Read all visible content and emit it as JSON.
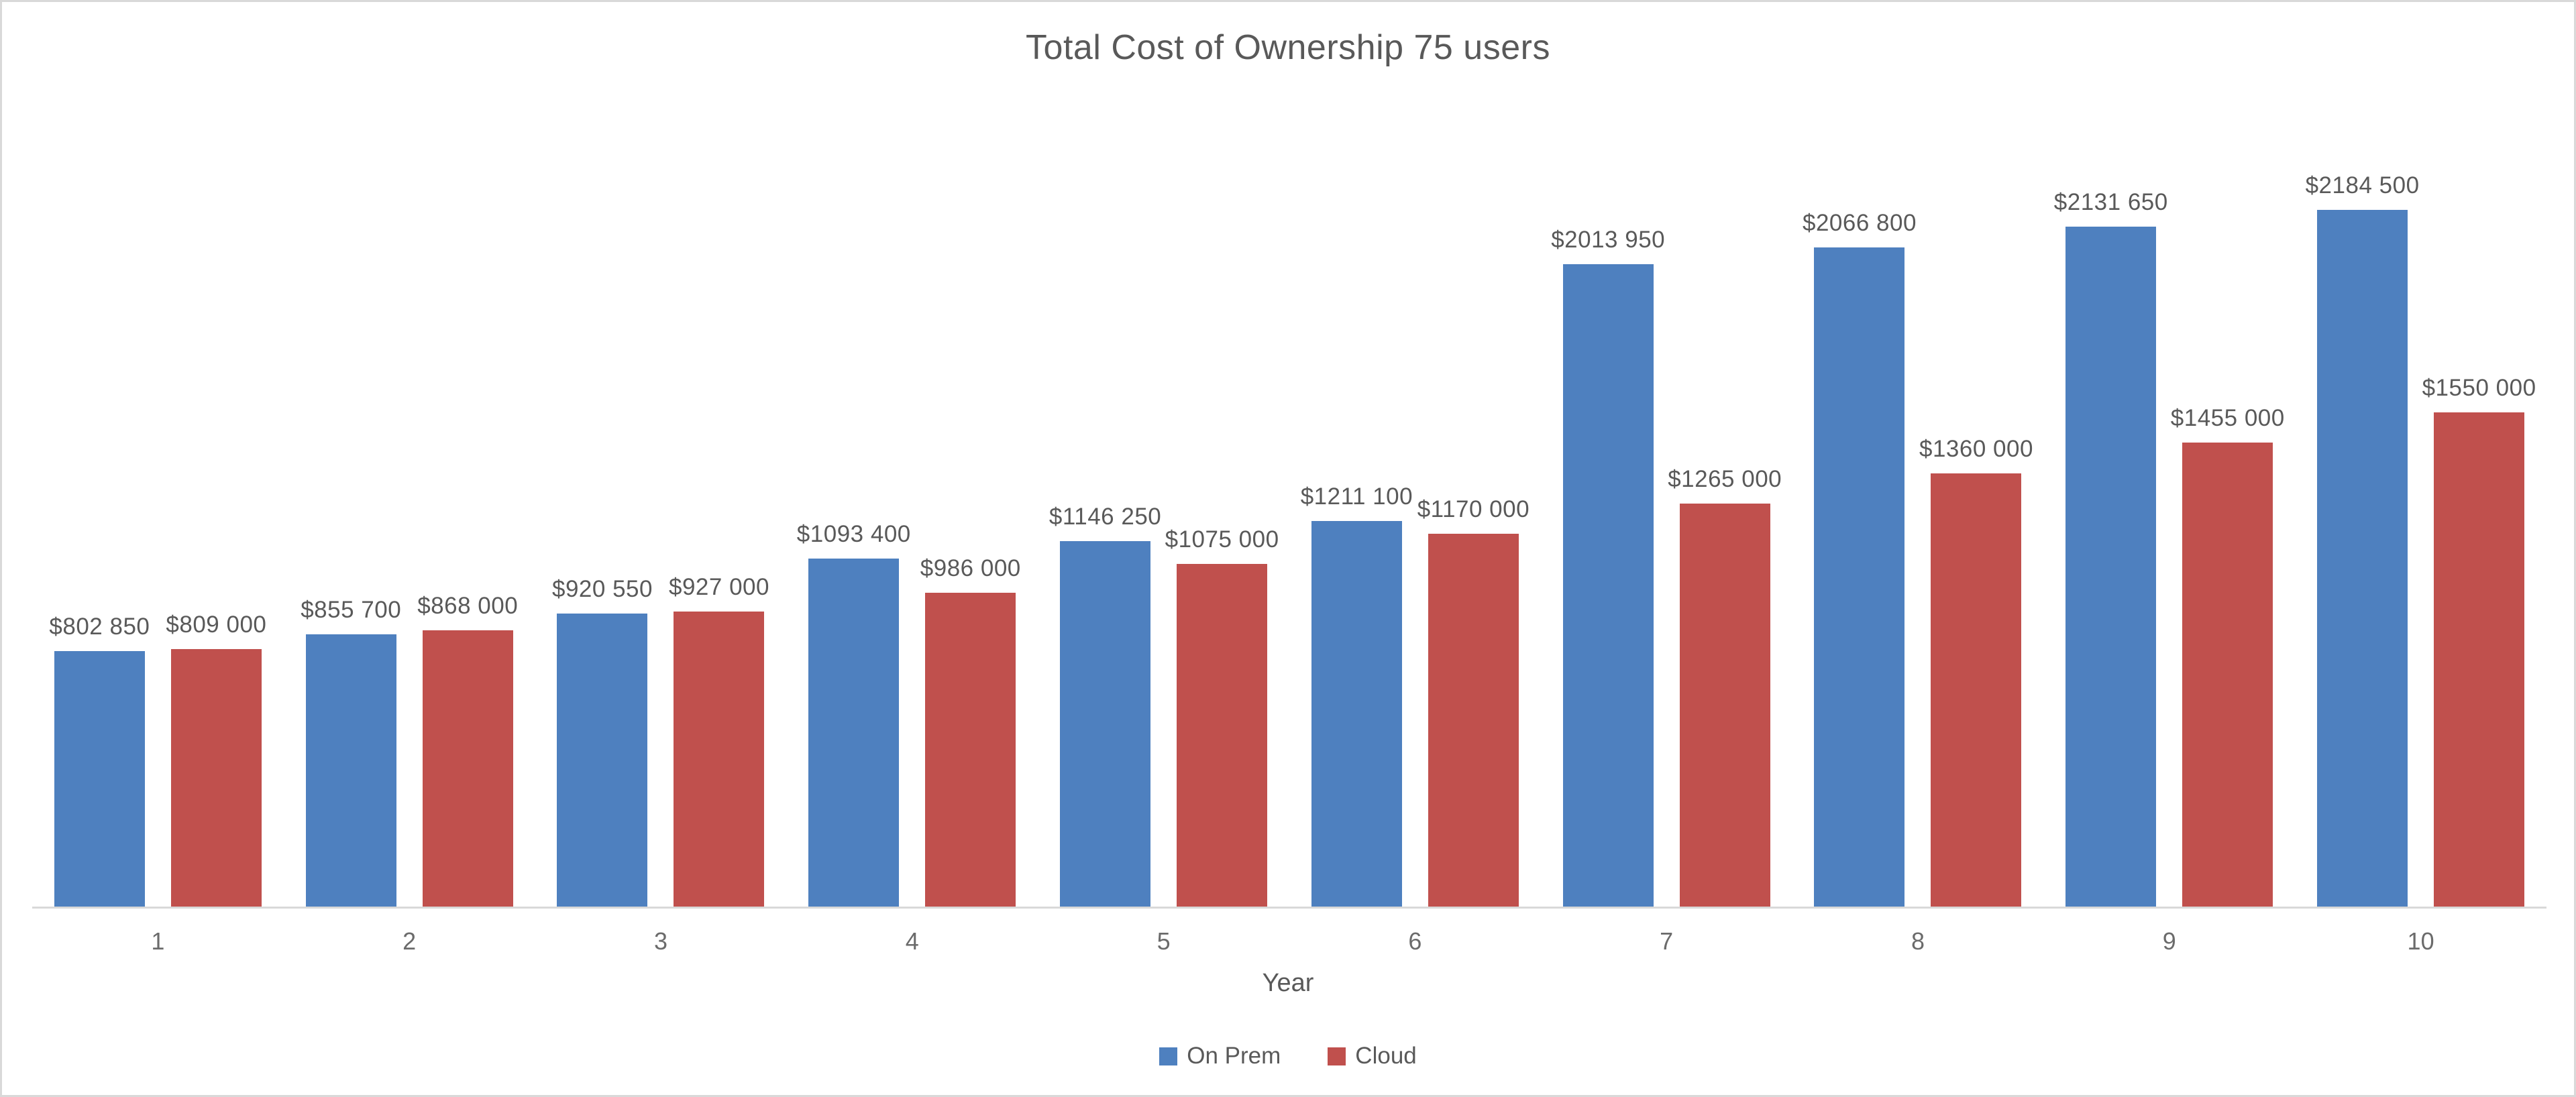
{
  "chart_data": {
    "type": "bar",
    "title": "Total Cost of Ownership 75 users",
    "xlabel": "Year",
    "ylabel": "",
    "categories": [
      "1",
      "2",
      "3",
      "4",
      "5",
      "6",
      "7",
      "8",
      "9",
      "10"
    ],
    "ylim": [
      0,
      2500000
    ],
    "grid": false,
    "legend_position": "bottom",
    "data_labels_position": "outside-end",
    "series": [
      {
        "name": "On Prem",
        "color": "#4E80BF",
        "values": [
          802850,
          855700,
          920550,
          1093400,
          1146250,
          1211100,
          2013950,
          2066800,
          2131650,
          2184500
        ],
        "labels": [
          "$802 850",
          "$855 700",
          "$920 550",
          "$1093 400",
          "$1146 250",
          "$1211 100",
          "$2013 950",
          "$2066 800",
          "$2131 650",
          "$2184 500"
        ]
      },
      {
        "name": "Cloud",
        "color": "#C0504D",
        "values": [
          809000,
          868000,
          927000,
          986000,
          1075000,
          1170000,
          1265000,
          1360000,
          1455000,
          1550000
        ],
        "labels": [
          "$809 000",
          "$868 000",
          "$927 000",
          "$986 000",
          "$1075 000",
          "$1170 000",
          "$1265 000",
          "$1360 000",
          "$1455 000",
          "$1550 000"
        ]
      }
    ]
  },
  "colors": {
    "frame_border": "#D9D9D9",
    "axis_line": "#D9D9D9",
    "title_text": "#595959",
    "label_text": "#595959",
    "tick_text": "#6b6b6b"
  }
}
